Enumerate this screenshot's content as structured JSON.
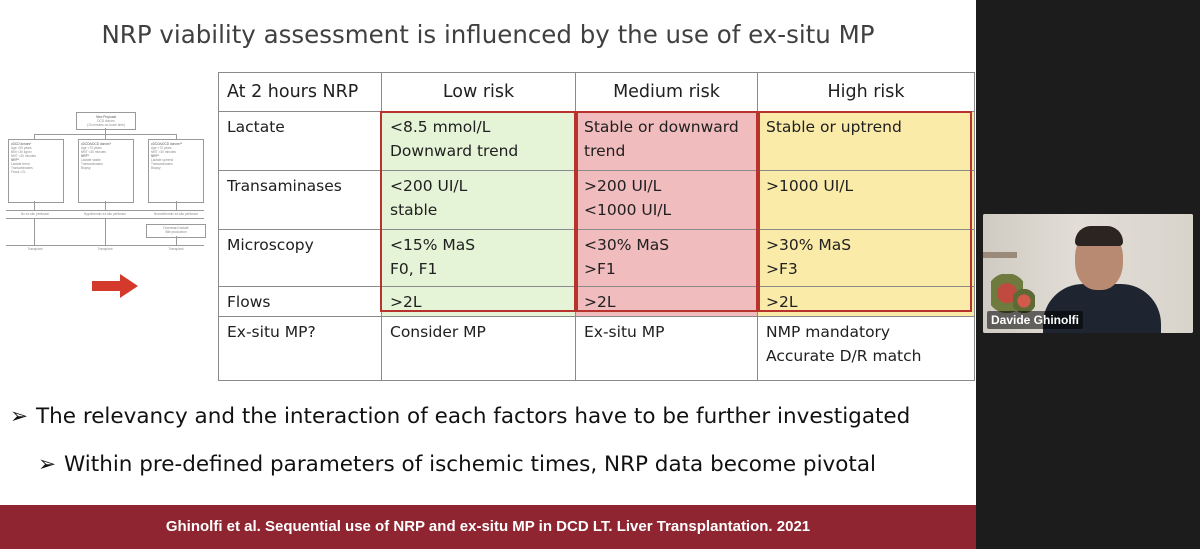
{
  "slide": {
    "title": "NRP viability assessment is influenced by the use of ex-situ MP",
    "table": {
      "header": [
        "At 2 hours NRP",
        "Low risk",
        "Medium risk",
        "High risk"
      ],
      "rows": [
        {
          "label": "Lactate",
          "low": [
            "<8.5 mmol/L",
            "Downward trend"
          ],
          "medium": [
            "Stable or downward",
            "trend"
          ],
          "high": [
            "Stable or uptrend"
          ]
        },
        {
          "label": "Transaminases",
          "low": [
            "<200 UI/L",
            "stable"
          ],
          "medium": [
            ">200 UI/L",
            "<1000 UI/L"
          ],
          "high": [
            ">1000 UI/L"
          ]
        },
        {
          "label": "Microscopy",
          "low": [
            "<15% MaS",
            "F0, F1"
          ],
          "medium": [
            "<30% MaS",
            ">F1"
          ],
          "high": [
            ">30% MaS",
            ">F3"
          ]
        },
        {
          "label": "Flows",
          "low": [
            ">2L"
          ],
          "medium": [
            ">2L"
          ],
          "high": [
            ">2L"
          ]
        },
        {
          "label": "Ex-situ MP?",
          "low": [
            "Consider MP"
          ],
          "medium": [
            "Ex-situ MP"
          ],
          "high": [
            "NMP mandatory",
            "Accurate D/R match"
          ]
        }
      ]
    },
    "bullets": [
      "The relevancy and the interaction of each factors have to be further investigated",
      "Within pre-defined parameters of ischemic times, NRP data become pivotal"
    ],
    "bullet_mark": "➢",
    "footer": "Ghinolfi et al. Sequential use of NRP and ex-situ MP in DCD LT. Liver Transplantation. 2021",
    "colors": {
      "low": "#e5f4d7",
      "medium": "#f0bcbd",
      "high": "#fbeba9",
      "outline": "#b8332e",
      "footer": "#8e2530",
      "arrow": "#d33a2c"
    },
    "thumbnail": {
      "top_box": [
        "New Proposal",
        "DCD donors",
        "(10 minutes no-touch time)"
      ],
      "columns": [
        {
          "title": "cDCD donors*",
          "items": [
            "Age <50 years",
            "BMI <30 kg/m²",
            "fWIT <30 minutes",
            "NRP*",
            "Lactate trend",
            "Transaminases",
            "Flows >2L"
          ],
          "action": "No ex-situ perfusion",
          "result": "Transplant"
        },
        {
          "title": "cDCD/uDCD donors*",
          "items": [
            "Age <70 years",
            "fWIT <30 minutes",
            "NRP*",
            "Lactate stable",
            "Transaminases",
            "Biopsy"
          ],
          "action": "Hypothermic ex-situ perfusion",
          "result": "Transplant"
        },
        {
          "title": "cDCD/uDCD donors**",
          "items": [
            "Age >70 years",
            "fWIT >30 minutes",
            "NRP*",
            "Lactate uptrend",
            "Transaminases",
            "Biopsy"
          ],
          "action": "Normothermic ex-situ perfusion",
          "result": "Transplant"
        }
      ],
      "note": [
        "Downward lactate",
        "Bile production"
      ]
    }
  },
  "video": {
    "participant_name": "Davide Ghinolfi"
  }
}
